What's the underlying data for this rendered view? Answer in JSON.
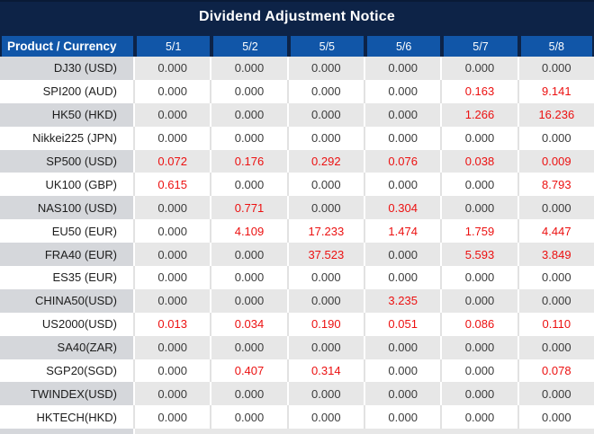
{
  "title": "Dividend Adjustment Notice",
  "table": {
    "product_header": "Product / Currency",
    "date_headers": [
      "5/1",
      "5/2",
      "5/5",
      "5/6",
      "5/7",
      "5/8"
    ],
    "rows": [
      {
        "product": "DJ30 (USD)",
        "values": [
          "0.000",
          "0.000",
          "0.000",
          "0.000",
          "0.000",
          "0.000"
        ],
        "red": [
          false,
          false,
          false,
          false,
          false,
          false
        ]
      },
      {
        "product": "SPI200 (AUD)",
        "values": [
          "0.000",
          "0.000",
          "0.000",
          "0.000",
          "0.163",
          "9.141"
        ],
        "red": [
          false,
          false,
          false,
          false,
          true,
          true
        ]
      },
      {
        "product": "HK50 (HKD)",
        "values": [
          "0.000",
          "0.000",
          "0.000",
          "0.000",
          "1.266",
          "16.236"
        ],
        "red": [
          false,
          false,
          false,
          false,
          true,
          true
        ]
      },
      {
        "product": "Nikkei225 (JPN)",
        "values": [
          "0.000",
          "0.000",
          "0.000",
          "0.000",
          "0.000",
          "0.000"
        ],
        "red": [
          false,
          false,
          false,
          false,
          false,
          false
        ]
      },
      {
        "product": "SP500 (USD)",
        "values": [
          "0.072",
          "0.176",
          "0.292",
          "0.076",
          "0.038",
          "0.009"
        ],
        "red": [
          true,
          true,
          true,
          true,
          true,
          true
        ]
      },
      {
        "product": "UK100 (GBP)",
        "values": [
          "0.615",
          "0.000",
          "0.000",
          "0.000",
          "0.000",
          "8.793"
        ],
        "red": [
          true,
          false,
          false,
          false,
          false,
          true
        ]
      },
      {
        "product": "NAS100 (USD)",
        "values": [
          "0.000",
          "0.771",
          "0.000",
          "0.304",
          "0.000",
          "0.000"
        ],
        "red": [
          false,
          true,
          false,
          true,
          false,
          false
        ]
      },
      {
        "product": "EU50 (EUR)",
        "values": [
          "0.000",
          "4.109",
          "17.233",
          "1.474",
          "1.759",
          "4.447"
        ],
        "red": [
          false,
          true,
          true,
          true,
          true,
          true
        ]
      },
      {
        "product": "FRA40 (EUR)",
        "values": [
          "0.000",
          "0.000",
          "37.523",
          "0.000",
          "5.593",
          "3.849"
        ],
        "red": [
          false,
          false,
          true,
          false,
          true,
          true
        ]
      },
      {
        "product": "ES35 (EUR)",
        "values": [
          "0.000",
          "0.000",
          "0.000",
          "0.000",
          "0.000",
          "0.000"
        ],
        "red": [
          false,
          false,
          false,
          false,
          false,
          false
        ]
      },
      {
        "product": "CHINA50(USD)",
        "values": [
          "0.000",
          "0.000",
          "0.000",
          "3.235",
          "0.000",
          "0.000"
        ],
        "red": [
          false,
          false,
          false,
          true,
          false,
          false
        ]
      },
      {
        "product": "US2000(USD)",
        "values": [
          "0.013",
          "0.034",
          "0.190",
          "0.051",
          "0.086",
          "0.110"
        ],
        "red": [
          true,
          true,
          true,
          true,
          true,
          true
        ]
      },
      {
        "product": "SA40(ZAR)",
        "values": [
          "0.000",
          "0.000",
          "0.000",
          "0.000",
          "0.000",
          "0.000"
        ],
        "red": [
          false,
          false,
          false,
          false,
          false,
          false
        ]
      },
      {
        "product": "SGP20(SGD)",
        "values": [
          "0.000",
          "0.407",
          "0.314",
          "0.000",
          "0.000",
          "0.078"
        ],
        "red": [
          false,
          true,
          true,
          false,
          false,
          true
        ]
      },
      {
        "product": "TWINDEX(USD)",
        "values": [
          "0.000",
          "0.000",
          "0.000",
          "0.000",
          "0.000",
          "0.000"
        ],
        "red": [
          false,
          false,
          false,
          false,
          false,
          false
        ]
      },
      {
        "product": "HKTECH(HKD)",
        "values": [
          "0.000",
          "0.000",
          "0.000",
          "0.000",
          "0.000",
          "0.000"
        ],
        "red": [
          false,
          false,
          false,
          false,
          false,
          false
        ]
      }
    ]
  },
  "colors": {
    "navy": "#0d2347",
    "header_blue": "#1156a8",
    "gray_row_product": "#d5d7db",
    "gray_row_value": "#e7e7e7",
    "white_row": "#ffffff",
    "value_text": "#3c3c3c",
    "highlight_red": "#ec1111",
    "header_text": "#ffffff"
  }
}
